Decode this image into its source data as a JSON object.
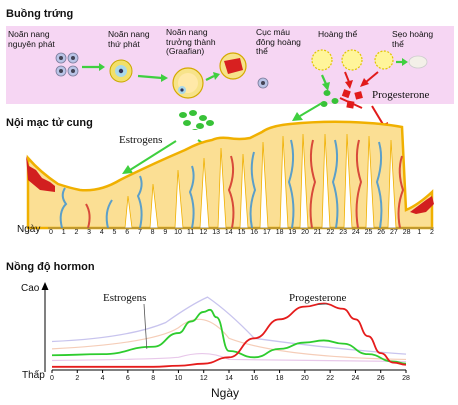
{
  "ovary": {
    "title": "Buồng trứng",
    "stages": [
      "Noãn nang nguyên phát",
      "Noãn nang thứ phát",
      "Noãn nang trưởng thành (Graafian)",
      "Cục máu đông hoàng thể",
      "Hoàng thể",
      "Sẹo hoàng thể"
    ],
    "progesterone_label": "Progesterone",
    "estrogens_label": "Estrogens"
  },
  "endometrium": {
    "title": "Nội mạc tử cung",
    "day_axis_label": "Ngày",
    "days": [
      "0",
      "1",
      "2",
      "3",
      "4",
      "5",
      "6",
      "7",
      "8",
      "9",
      "10",
      "11",
      "12",
      "13",
      "14",
      "15",
      "16",
      "17",
      "18",
      "19",
      "20",
      "21",
      "22",
      "23",
      "24",
      "25",
      "26",
      "27",
      "28",
      "1",
      "2"
    ]
  },
  "hormone": {
    "title": "Nồng độ hormon",
    "high_label": "Cao",
    "low_label": "Thấp",
    "x_label": "Ngày",
    "estrogens_label": "Estrogens",
    "progesterone_label": "Progesterone",
    "ticks": [
      "0",
      "2",
      "4",
      "6",
      "8",
      "10",
      "12",
      "14",
      "16",
      "18",
      "20",
      "22",
      "24",
      "26",
      "28"
    ]
  },
  "chart_data": {
    "type": "line",
    "xlabel": "Ngày",
    "ylabel": "",
    "xlim": [
      0,
      28
    ],
    "series": [
      {
        "name": "Estrogens",
        "color": "#2ecc2e",
        "x": [
          0,
          4,
          8,
          10,
          11,
          12,
          12.5,
          13,
          14,
          16,
          18,
          20,
          21.5,
          23,
          25,
          27,
          28
        ],
        "y": [
          0.14,
          0.15,
          0.22,
          0.35,
          0.46,
          0.55,
          0.57,
          0.5,
          0.18,
          0.12,
          0.2,
          0.26,
          0.28,
          0.25,
          0.15,
          0.08,
          0.06
        ]
      },
      {
        "name": "Progesterone",
        "color": "#e51c1c",
        "x": [
          0,
          8,
          10,
          12,
          14,
          16,
          18,
          20,
          21.5,
          23,
          24,
          25,
          26,
          27,
          28
        ],
        "y": [
          0.03,
          0.03,
          0.04,
          0.06,
          0.12,
          0.3,
          0.48,
          0.6,
          0.63,
          0.58,
          0.48,
          0.32,
          0.16,
          0.07,
          0.05
        ]
      }
    ]
  },
  "colors": {
    "ovary_band": "#f6d6f3",
    "endometrium_fill": "#fbdf94",
    "endometrium_edge": "#f0b000",
    "estrogen_green": "#2ecc2e",
    "progesterone_red": "#e51c1c",
    "vessel_blue": "#5b9fc9"
  }
}
